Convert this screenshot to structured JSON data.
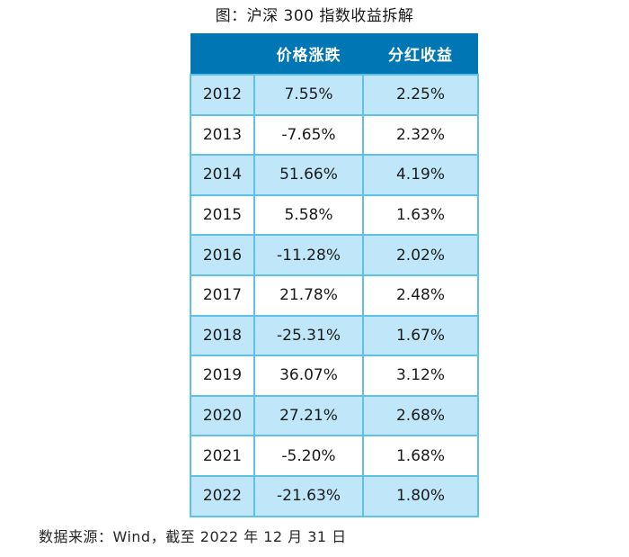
{
  "page": {
    "title": "图：沪深 300 指数收益拆解",
    "source_note": "数据来源：Wind，截至 2022 年 12 月 31 日"
  },
  "table": {
    "headers": [
      "",
      "价格涨跌",
      "分红收益"
    ],
    "rows": [
      [
        "2012",
        "7.55%",
        "2.25%"
      ],
      [
        "2013",
        "-7.65%",
        "2.32%"
      ],
      [
        "2014",
        "51.66%",
        "4.19%"
      ],
      [
        "2015",
        "5.58%",
        "1.63%"
      ],
      [
        "2016",
        "-11.28%",
        "2.02%"
      ],
      [
        "2017",
        "21.78%",
        "2.48%"
      ],
      [
        "2018",
        "-25.31%",
        "1.67%"
      ],
      [
        "2019",
        "36.07%",
        "3.12%"
      ],
      [
        "2020",
        "27.21%",
        "2.68%"
      ],
      [
        "2021",
        "-5.20%",
        "1.68%"
      ],
      [
        "2022",
        "-21.63%",
        "1.80%"
      ]
    ]
  },
  "colors": {
    "header_bg": "#0077b4",
    "header_text": "#ffffff",
    "alt_row_bg": "#bfe7f9",
    "row_bg": "#ffffff",
    "grid_border": "#5ec2e8",
    "body_text": "#1a1a1a"
  },
  "chart_data": {
    "type": "table",
    "title": "图：沪深 300 指数收益拆解",
    "columns": [
      "",
      "价格涨跌",
      "分红收益"
    ],
    "categories": [
      "2012",
      "2013",
      "2014",
      "2015",
      "2016",
      "2017",
      "2018",
      "2019",
      "2020",
      "2021",
      "2022"
    ],
    "series": [
      {
        "name": "价格涨跌",
        "values": [
          7.55,
          -7.65,
          51.66,
          5.58,
          -11.28,
          21.78,
          -25.31,
          36.07,
          27.21,
          -5.2,
          -21.63
        ]
      },
      {
        "name": "分红收益",
        "values": [
          2.25,
          2.32,
          4.19,
          1.63,
          2.02,
          2.48,
          1.67,
          3.12,
          2.68,
          1.68,
          1.8
        ]
      }
    ],
    "unit": "%",
    "source_note": "数据来源：Wind，截至 2022 年 12 月 31 日"
  }
}
